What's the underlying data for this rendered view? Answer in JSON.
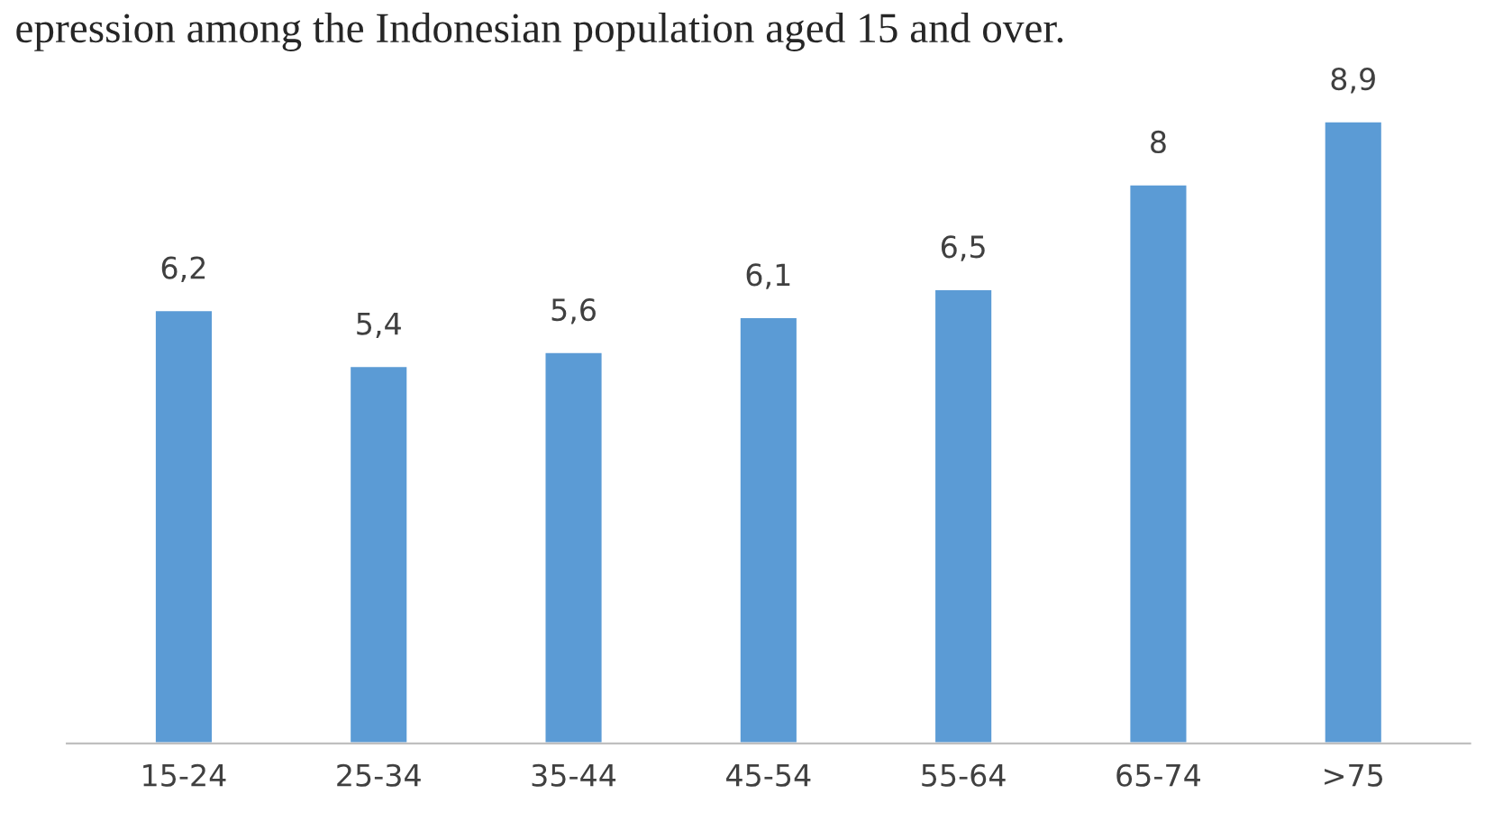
{
  "chart_data": {
    "type": "bar",
    "title": "epression among the Indonesian population aged 15 and over.",
    "categories": [
      "15-24",
      "25-34",
      "35-44",
      "45-54",
      "55-64",
      "65-74",
      ">75"
    ],
    "values": [
      6.2,
      5.4,
      5.6,
      6.1,
      6.5,
      8,
      8.9
    ],
    "value_labels": [
      "6,2",
      "5,4",
      "5,6",
      "6,1",
      "6,5",
      "8",
      "8,9"
    ],
    "color": "#5b9bd5",
    "grid": false,
    "legend": false
  }
}
